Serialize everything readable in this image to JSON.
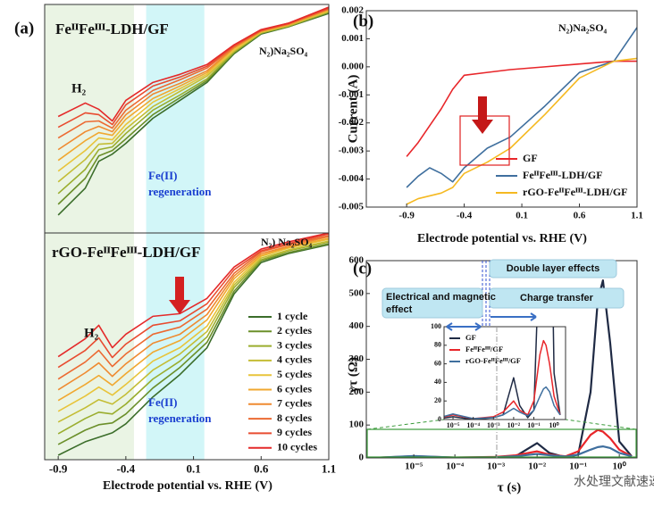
{
  "panel_labels": [
    "(a)",
    "(b)",
    "(c)"
  ],
  "watermark": "水处理文献速递",
  "chart_data": [
    {
      "type": "line",
      "title": "FeᴵᴵFeᴵᴵᴵ-LDH/GF",
      "h2_label": "H₂",
      "medium_label": "N₂)Na₂SO₄",
      "region_label": [
        "Fe(II)",
        "regeneration"
      ],
      "xlim": [
        -1.0,
        1.1
      ],
      "ylim": [
        0,
        255
      ],
      "shaded_regions": [
        {
          "xlim": [
            -1.0,
            -0.34
          ],
          "color": "#eaf4e4"
        },
        {
          "xlim": [
            -0.25,
            0.18
          ],
          "color": "#d2f6f8"
        }
      ],
      "x": [
        -0.9,
        -0.7,
        -0.6,
        -0.5,
        -0.4,
        -0.2,
        0.0,
        0.2,
        0.4,
        0.6,
        0.8,
        1.1
      ],
      "series": [
        {
          "color": "#3b6d2a",
          "values": [
            20,
            50,
            80,
            88,
            100,
            128,
            148,
            168,
            200,
            222,
            230,
            245
          ]
        },
        {
          "color": "#6b8f2a",
          "values": [
            32,
            61,
            86,
            92,
            105,
            132,
            151,
            170,
            201,
            223,
            230,
            246
          ]
        },
        {
          "color": "#9aad2e",
          "values": [
            44,
            71,
            93,
            96,
            111,
            137,
            154,
            172,
            202,
            223,
            231,
            247
          ]
        },
        {
          "color": "#c4bd35",
          "values": [
            57,
            82,
            99,
            100,
            116,
            141,
            158,
            175,
            203,
            224,
            231,
            247
          ]
        },
        {
          "color": "#e8c43a",
          "values": [
            69,
            92,
            106,
            104,
            121,
            146,
            161,
            177,
            204,
            224,
            232,
            248
          ]
        },
        {
          "color": "#f0a830",
          "values": [
            81,
            103,
            112,
            109,
            127,
            150,
            164,
            179,
            206,
            225,
            232,
            249
          ]
        },
        {
          "color": "#ef8a30",
          "values": [
            93,
            113,
            119,
            113,
            132,
            155,
            167,
            181,
            207,
            225,
            233,
            250
          ]
        },
        {
          "color": "#ec6a32",
          "values": [
            106,
            124,
            125,
            117,
            137,
            159,
            171,
            184,
            208,
            226,
            233,
            250
          ]
        },
        {
          "color": "#e84c30",
          "values": [
            118,
            134,
            132,
            121,
            143,
            164,
            174,
            186,
            209,
            226,
            234,
            251
          ]
        },
        {
          "color": "#e42a2a",
          "values": [
            130,
            145,
            138,
            125,
            148,
            168,
            177,
            188,
            210,
            227,
            234,
            252
          ]
        }
      ]
    },
    {
      "type": "line",
      "title": "rGO-FeᴵᴵFeᴵᴵᴵ-LDH/GF",
      "h2_label": "H₂",
      "medium_label": "N₂) Na₂SO₄",
      "region_label": [
        "Fe(II)",
        "regeneration"
      ],
      "xlabel": "Electrode potential vs. RHE (V)",
      "xlim": [
        -1.0,
        1.1
      ],
      "ylim": [
        0,
        253
      ],
      "xticks": [
        -0.9,
        -0.4,
        0.1,
        0.6,
        1.1
      ],
      "shaded_regions": [
        {
          "xlim": [
            -1.0,
            -0.34
          ],
          "color": "#eaf4e4"
        },
        {
          "xlim": [
            -0.25,
            0.18
          ],
          "color": "#d2f6f8"
        }
      ],
      "x": [
        -0.9,
        -0.7,
        -0.6,
        -0.5,
        -0.4,
        -0.2,
        0.0,
        0.2,
        0.4,
        0.6,
        0.8,
        1.1
      ],
      "series": [
        {
          "name": "1 cycle",
          "color": "#3b6d2a",
          "values": [
            5,
            20,
            25,
            30,
            40,
            70,
            95,
            125,
            185,
            220,
            230,
            240
          ]
        },
        {
          "name": "2 cycles",
          "color": "#6b8f2a",
          "values": [
            17,
            33,
            39,
            41,
            51,
            80,
            103,
            131,
            188,
            222,
            231,
            241
          ]
        },
        {
          "name": "3 cycles",
          "color": "#9aad2e",
          "values": [
            29,
            46,
            53,
            51,
            62,
            90,
            110,
            137,
            192,
            223,
            233,
            243
          ]
        },
        {
          "name": "4 cycles",
          "color": "#c4bd35",
          "values": [
            42,
            58,
            67,
            62,
            73,
            100,
            118,
            143,
            195,
            225,
            234,
            244
          ]
        },
        {
          "name": "5 cycles",
          "color": "#e8c43a",
          "values": [
            54,
            71,
            81,
            72,
            84,
            110,
            125,
            149,
            198,
            227,
            236,
            246
          ]
        },
        {
          "name": "6 cycles",
          "color": "#f0a830",
          "values": [
            66,
            84,
            94,
            83,
            96,
            120,
            133,
            156,
            202,
            228,
            237,
            247
          ]
        },
        {
          "name": "7 cycles",
          "color": "#ef8a30",
          "values": [
            78,
            97,
            108,
            93,
            107,
            130,
            140,
            162,
            205,
            230,
            238,
            249
          ]
        },
        {
          "name": "8 cycles",
          "color": "#ec6a32",
          "values": [
            90,
            109,
            122,
            104,
            118,
            140,
            148,
            168,
            208,
            232,
            240,
            250
          ]
        },
        {
          "name": "9 cycles",
          "color": "#e84c30",
          "values": [
            103,
            122,
            136,
            114,
            129,
            150,
            155,
            174,
            212,
            233,
            241,
            252
          ]
        },
        {
          "name": "10 cycles",
          "color": "#e42a2a",
          "values": [
            115,
            135,
            150,
            125,
            140,
            160,
            163,
            180,
            215,
            235,
            243,
            253
          ]
        }
      ]
    },
    {
      "type": "line",
      "medium_label": "N₂)Na₂SO₄",
      "xlabel": "Electrode potential vs. RHE (V)",
      "ylabel": "Current (A)",
      "xlim": [
        -1.25,
        1.1
      ],
      "ylim": [
        -0.005,
        0.002
      ],
      "xticks": [
        -0.9,
        -0.4,
        0.1,
        0.6,
        1.1
      ],
      "yticks": [
        0.002,
        0.001,
        {
          "value": 0,
          "label": "0.000"
        },
        -0.001,
        -0.002,
        -0.003,
        -0.004,
        -0.005
      ],
      "x": [
        -0.9,
        -0.8,
        -0.7,
        -0.6,
        -0.5,
        -0.4,
        -0.2,
        0.0,
        0.3,
        0.6,
        0.9,
        1.1
      ],
      "series": [
        {
          "name": "GF",
          "color": "#e8262a",
          "values": [
            -0.0032,
            -0.0027,
            -0.0021,
            -0.0015,
            -0.0008,
            -0.0003,
            -0.0002,
            -0.0001,
            0.0,
            0.0001,
            0.0002,
            0.0002
          ]
        },
        {
          "name": "FeᴵᴵFeᴵᴵᴵ-LDH/GF",
          "color": "#3f6f9e",
          "values": [
            -0.0043,
            -0.0039,
            -0.0036,
            -0.0038,
            -0.0041,
            -0.0036,
            -0.0029,
            -0.0025,
            -0.0014,
            -0.0002,
            0.0002,
            0.0014
          ]
        },
        {
          "name": "rGO-FeᴵᴵFeᴵᴵᴵ-LDH/GF",
          "color": "#f5b921",
          "values": [
            -0.0049,
            -0.0047,
            -0.0046,
            -0.0045,
            -0.0043,
            -0.0038,
            -0.0034,
            -0.0029,
            -0.0017,
            -0.0004,
            0.0002,
            0.0003
          ]
        }
      ]
    },
    {
      "type": "line",
      "xscale": "log",
      "xlabel": "τ (s)",
      "ylabel": "γτ (Ω)",
      "region_labels": {
        "double_layer": "Double layer effects",
        "charge_transfer": "Charge transfer",
        "electrical": [
          "Electrical and magnetic",
          "effect"
        ]
      },
      "xlim": [
        7e-07,
        2.7
      ],
      "ylim": [
        0,
        600
      ],
      "xticks": [
        {
          "value": 1e-05,
          "label": "10⁻⁵"
        },
        {
          "value": 0.0001,
          "label": "10⁻⁴"
        },
        {
          "value": 0.001,
          "label": "10⁻³"
        },
        {
          "value": 0.01,
          "label": "10⁻²"
        },
        {
          "value": 0.1,
          "label": "10⁻¹"
        },
        {
          "value": 1,
          "label": "10⁰"
        }
      ],
      "yticks": [
        0,
        100,
        200,
        300,
        400,
        500,
        600
      ],
      "x": [
        1e-06,
        1e-05,
        0.0001,
        0.001,
        0.003,
        0.01,
        0.02,
        0.05,
        0.1,
        0.2,
        0.3,
        0.4,
        0.6,
        1,
        2
      ],
      "series": [
        {
          "name": "GF",
          "color": "#1f2a44",
          "values": [
            0,
            3,
            0,
            2,
            5,
            45,
            15,
            2,
            10,
            200,
            480,
            540,
            350,
            50,
            5
          ]
        },
        {
          "name": "FeᴵᴵFeᴵᴵᴵ/GF",
          "color": "#e8262a",
          "values": [
            0,
            5,
            1,
            3,
            8,
            20,
            10,
            5,
            20,
            70,
            85,
            80,
            60,
            25,
            5
          ]
        },
        {
          "name": "rGO-FeᴵᴵFeᴵᴵᴵ/GF",
          "color": "#3f6f9e",
          "values": [
            0,
            6,
            1,
            2,
            5,
            12,
            8,
            4,
            10,
            25,
            33,
            35,
            30,
            15,
            5
          ]
        }
      ],
      "inset": {
        "xlim": [
          3.6e-06,
          3.7
        ],
        "ylim": [
          0,
          100
        ],
        "xticks": [
          {
            "value": 1e-05,
            "label": "10⁻⁵"
          },
          {
            "value": 0.0001,
            "label": "10⁻⁴"
          },
          {
            "value": 0.001,
            "label": "10⁻³"
          },
          {
            "value": 0.01,
            "label": "10⁻²"
          },
          {
            "value": 0.1,
            "label": "10⁻¹"
          },
          {
            "value": 1,
            "label": "10⁰"
          }
        ],
        "yticks": [
          0,
          20,
          40,
          60,
          80,
          100
        ]
      }
    }
  ]
}
